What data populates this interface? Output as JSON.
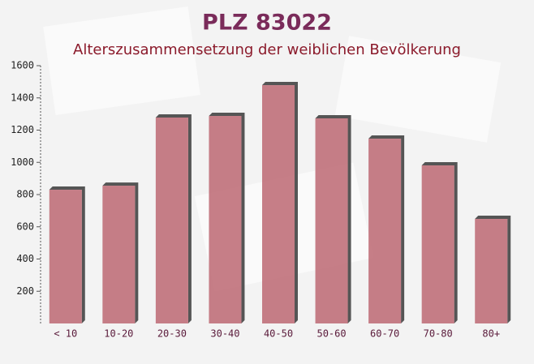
{
  "chart_data": {
    "type": "bar",
    "title": "PLZ 83022",
    "subtitle": "Alterszusammensetzung der weiblichen Bevölkerung",
    "categories": [
      "< 10",
      "10-20",
      "20-30",
      "30-40",
      "40-50",
      "50-60",
      "60-70",
      "70-80",
      "80+"
    ],
    "values": [
      830,
      855,
      1278,
      1288,
      1479,
      1273,
      1147,
      981,
      649
    ],
    "color": "#c0707a",
    "ylim": [
      0,
      1600
    ],
    "yticks": [
      200,
      400,
      600,
      800,
      1000,
      1200,
      1400,
      1600
    ],
    "grid": false
  }
}
